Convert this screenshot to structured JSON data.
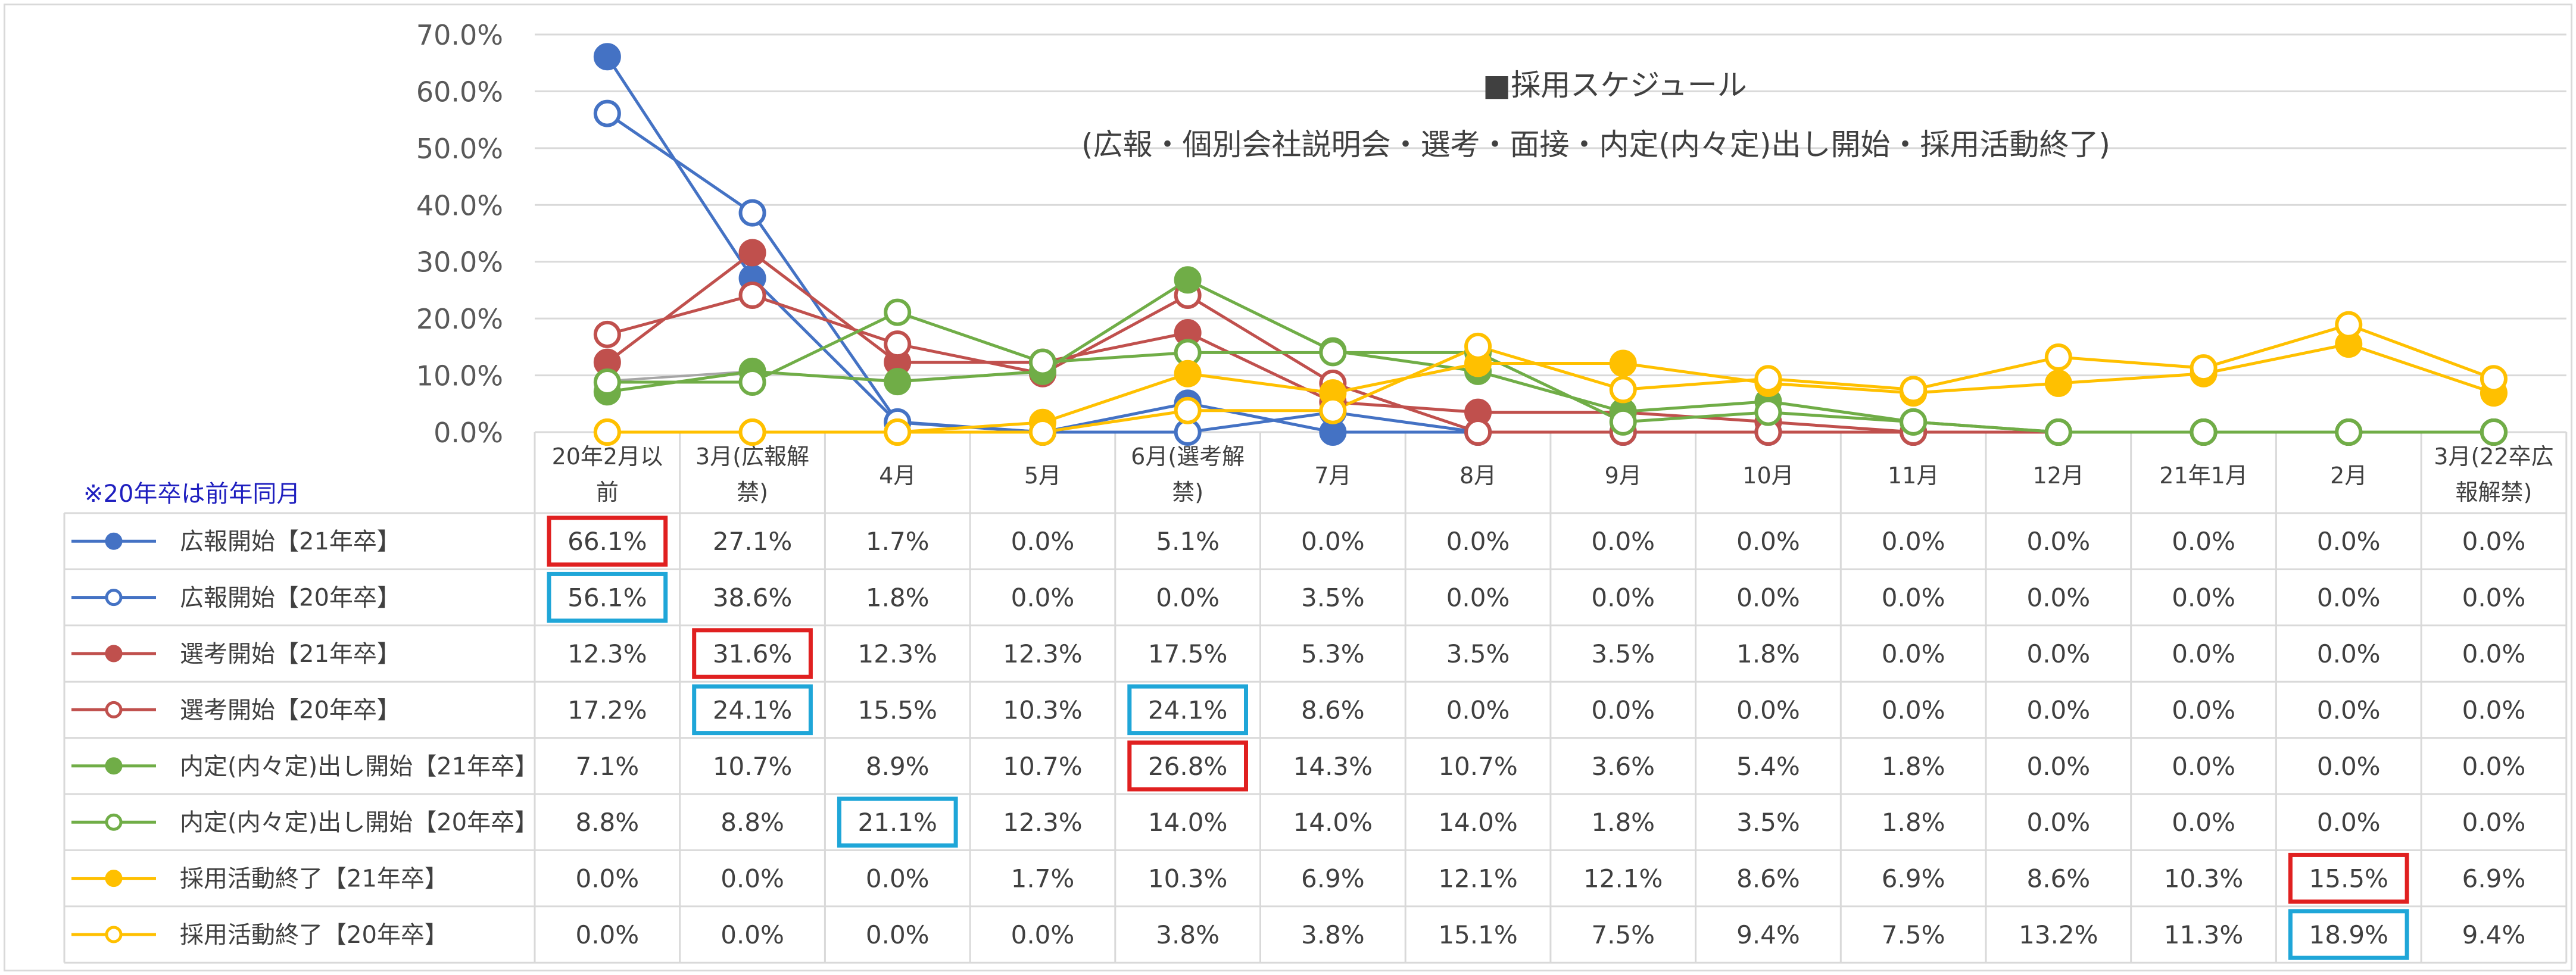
{
  "chart_data": {
    "type": "line",
    "title": "■採用スケジュール",
    "subtitle": "(広報・個別会社説明会・選考・面接・内定(内々定)出し開始・採用活動終了)",
    "note": "※20年卒は前年同月",
    "categories": [
      [
        "20年2月以",
        "前"
      ],
      [
        "3月(広報解",
        "禁)"
      ],
      [
        "4月"
      ],
      [
        "5月"
      ],
      [
        "6月(選考解",
        "禁)"
      ],
      [
        "7月"
      ],
      [
        "8月"
      ],
      [
        "9月"
      ],
      [
        "10月"
      ],
      [
        "11月"
      ],
      [
        "12月"
      ],
      [
        "21年1月"
      ],
      [
        "2月"
      ],
      [
        "3月(22卒広",
        "報解禁)"
      ]
    ],
    "yticks": [
      "70.0%",
      "60.0%",
      "50.0%",
      "40.0%",
      "30.0%",
      "20.0%",
      "10.0%",
      "0.0%"
    ],
    "ylim": [
      0,
      70
    ],
    "series": [
      {
        "name": "広報開始【21年卒】",
        "color": "#4472c4",
        "filled": true,
        "values": [
          66.1,
          27.1,
          1.7,
          0.0,
          5.1,
          0.0,
          0.0,
          0.0,
          0.0,
          0.0,
          0.0,
          0.0,
          0.0,
          0.0
        ],
        "labels": [
          "66.1%",
          "27.1%",
          "1.7%",
          "0.0%",
          "5.1%",
          "0.0%",
          "0.0%",
          "0.0%",
          "0.0%",
          "0.0%",
          "0.0%",
          "0.0%",
          "0.0%",
          "0.0%"
        ]
      },
      {
        "name": "広報開始【20年卒】",
        "color": "#4472c4",
        "filled": false,
        "values": [
          56.1,
          38.6,
          1.8,
          0.0,
          0.0,
          3.5,
          0.0,
          0.0,
          0.0,
          0.0,
          0.0,
          0.0,
          0.0,
          0.0
        ],
        "labels": [
          "56.1%",
          "38.6%",
          "1.8%",
          "0.0%",
          "0.0%",
          "3.5%",
          "0.0%",
          "0.0%",
          "0.0%",
          "0.0%",
          "0.0%",
          "0.0%",
          "0.0%",
          "0.0%"
        ]
      },
      {
        "name": "選考開始【21年卒】",
        "color": "#c0504d",
        "filled": true,
        "values": [
          12.3,
          31.6,
          12.3,
          12.3,
          17.5,
          5.3,
          3.5,
          3.5,
          1.8,
          0.0,
          0.0,
          0.0,
          0.0,
          0.0
        ],
        "labels": [
          "12.3%",
          "31.6%",
          "12.3%",
          "12.3%",
          "17.5%",
          "5.3%",
          "3.5%",
          "3.5%",
          "1.8%",
          "0.0%",
          "0.0%",
          "0.0%",
          "0.0%",
          "0.0%"
        ]
      },
      {
        "name": "選考開始【20年卒】",
        "color": "#c0504d",
        "filled": false,
        "values": [
          17.2,
          24.1,
          15.5,
          10.3,
          24.1,
          8.6,
          0.0,
          0.0,
          0.0,
          0.0,
          0.0,
          0.0,
          0.0,
          0.0
        ],
        "labels": [
          "17.2%",
          "24.1%",
          "15.5%",
          "10.3%",
          "24.1%",
          "8.6%",
          "0.0%",
          "0.0%",
          "0.0%",
          "0.0%",
          "0.0%",
          "0.0%",
          "0.0%",
          "0.0%"
        ]
      },
      {
        "name": "内定(内々定)出し開始【21年卒】",
        "color": "#70ad47",
        "filled": true,
        "values": [
          7.1,
          10.7,
          8.9,
          10.7,
          26.8,
          14.3,
          10.7,
          3.6,
          5.4,
          1.8,
          0.0,
          0.0,
          0.0,
          0.0
        ],
        "labels": [
          "7.1%",
          "10.7%",
          "8.9%",
          "10.7%",
          "26.8%",
          "14.3%",
          "10.7%",
          "3.6%",
          "5.4%",
          "1.8%",
          "0.0%",
          "0.0%",
          "0.0%",
          "0.0%"
        ]
      },
      {
        "name": "内定(内々定)出し開始【20年卒】",
        "color": "#70ad47",
        "filled": false,
        "values": [
          8.8,
          8.8,
          21.1,
          12.3,
          14.0,
          14.0,
          14.0,
          1.8,
          3.5,
          1.8,
          0.0,
          0.0,
          0.0,
          0.0
        ],
        "labels": [
          "8.8%",
          "8.8%",
          "21.1%",
          "12.3%",
          "14.0%",
          "14.0%",
          "14.0%",
          "1.8%",
          "3.5%",
          "1.8%",
          "0.0%",
          "0.0%",
          "0.0%",
          "0.0%"
        ]
      },
      {
        "name": "採用活動終了【21年卒】",
        "color": "#ffc000",
        "filled": true,
        "values": [
          0.0,
          0.0,
          0.0,
          1.7,
          10.3,
          6.9,
          12.1,
          12.1,
          8.6,
          6.9,
          8.6,
          10.3,
          15.5,
          6.9
        ],
        "labels": [
          "0.0%",
          "0.0%",
          "0.0%",
          "1.7%",
          "10.3%",
          "6.9%",
          "12.1%",
          "12.1%",
          "8.6%",
          "6.9%",
          "8.6%",
          "10.3%",
          "15.5%",
          "6.9%"
        ]
      },
      {
        "name": "採用活動終了【20年卒】",
        "color": "#ffc000",
        "filled": false,
        "values": [
          0.0,
          0.0,
          0.0,
          0.0,
          3.8,
          3.8,
          15.1,
          7.5,
          9.4,
          7.5,
          13.2,
          11.3,
          18.9,
          9.4
        ],
        "labels": [
          "0.0%",
          "0.0%",
          "0.0%",
          "0.0%",
          "3.8%",
          "3.8%",
          "15.1%",
          "7.5%",
          "9.4%",
          "7.5%",
          "13.2%",
          "11.3%",
          "18.9%",
          "9.4%"
        ]
      }
    ],
    "ghost_series": {
      "color": "#a6a6a6",
      "values": [
        9,
        10.7,
        9,
        10.7,
        26.8,
        14.3,
        10.7,
        3.6,
        5.4,
        1.8,
        0,
        0,
        0,
        0
      ]
    },
    "highlights": [
      {
        "series": 0,
        "index": 0,
        "color": "#e02020"
      },
      {
        "series": 1,
        "index": 0,
        "color": "#1fa6d8"
      },
      {
        "series": 2,
        "index": 1,
        "color": "#e02020"
      },
      {
        "series": 3,
        "index": 1,
        "color": "#1fa6d8"
      },
      {
        "series": 3,
        "index": 4,
        "color": "#1fa6d8"
      },
      {
        "series": 4,
        "index": 4,
        "color": "#e02020"
      },
      {
        "series": 5,
        "index": 2,
        "color": "#1fa6d8"
      },
      {
        "series": 6,
        "index": 12,
        "color": "#e02020"
      },
      {
        "series": 7,
        "index": 12,
        "color": "#1fa6d8"
      }
    ],
    "grid": true,
    "legend": "table-left"
  }
}
